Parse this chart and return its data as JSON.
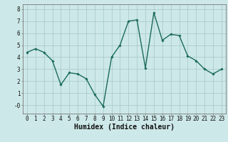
{
  "x": [
    0,
    1,
    2,
    3,
    4,
    5,
    6,
    7,
    8,
    9,
    10,
    11,
    12,
    13,
    14,
    15,
    16,
    17,
    18,
    19,
    20,
    21,
    22,
    23
  ],
  "y": [
    4.4,
    4.7,
    4.4,
    3.7,
    1.7,
    2.7,
    2.6,
    2.2,
    0.9,
    -0.1,
    4.0,
    5.0,
    7.0,
    7.1,
    3.1,
    7.7,
    5.4,
    5.9,
    5.8,
    4.1,
    3.7,
    3.0,
    2.6,
    3.0
  ],
  "line_color": "#1a6b5a",
  "marker": "D",
  "markersize": 1.8,
  "linewidth": 1.0,
  "bg_color": "#cde8e8",
  "grid_color": "#aacccc",
  "xlabel": "Humidex (Indice chaleur)",
  "xlabel_fontsize": 7,
  "yticks": [
    0,
    1,
    2,
    3,
    4,
    5,
    6,
    7,
    8
  ],
  "ytick_labels": [
    "-0",
    "1",
    "2",
    "3",
    "4",
    "5",
    "6",
    "7",
    "8"
  ],
  "ylim": [
    -0.7,
    8.4
  ],
  "xlim": [
    -0.5,
    23.5
  ],
  "xticks": [
    0,
    1,
    2,
    3,
    4,
    5,
    6,
    7,
    8,
    9,
    10,
    11,
    12,
    13,
    14,
    15,
    16,
    17,
    18,
    19,
    20,
    21,
    22,
    23
  ],
  "tick_fontsize": 5.5
}
